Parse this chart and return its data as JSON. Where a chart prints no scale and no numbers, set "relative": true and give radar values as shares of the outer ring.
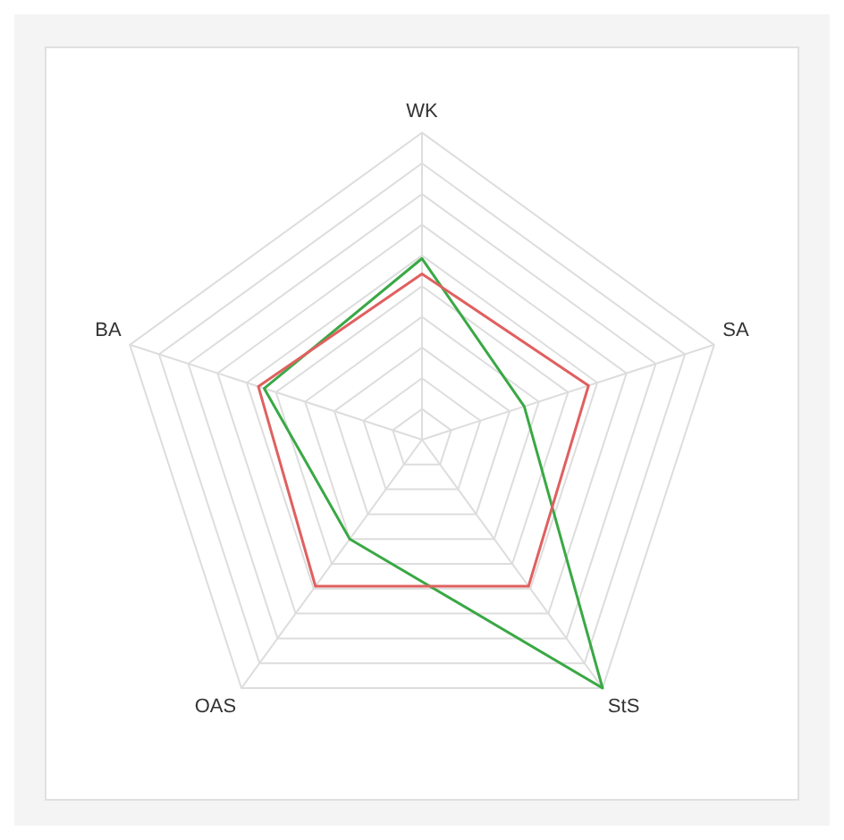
{
  "chart_data": {
    "type": "radar",
    "relative": true,
    "grid": true,
    "legend": false,
    "marker": "none",
    "categories": [
      "WK",
      "SA",
      "StS",
      "OAS",
      "BA"
    ],
    "series": [
      {
        "color": "#e06060",
        "values": [
          0.54,
          0.57,
          0.59,
          0.59,
          0.56
        ]
      },
      {
        "color": "#3aa845",
        "values": [
          0.59,
          0.35,
          1,
          0.4,
          0.54
        ]
      }
    ]
  }
}
